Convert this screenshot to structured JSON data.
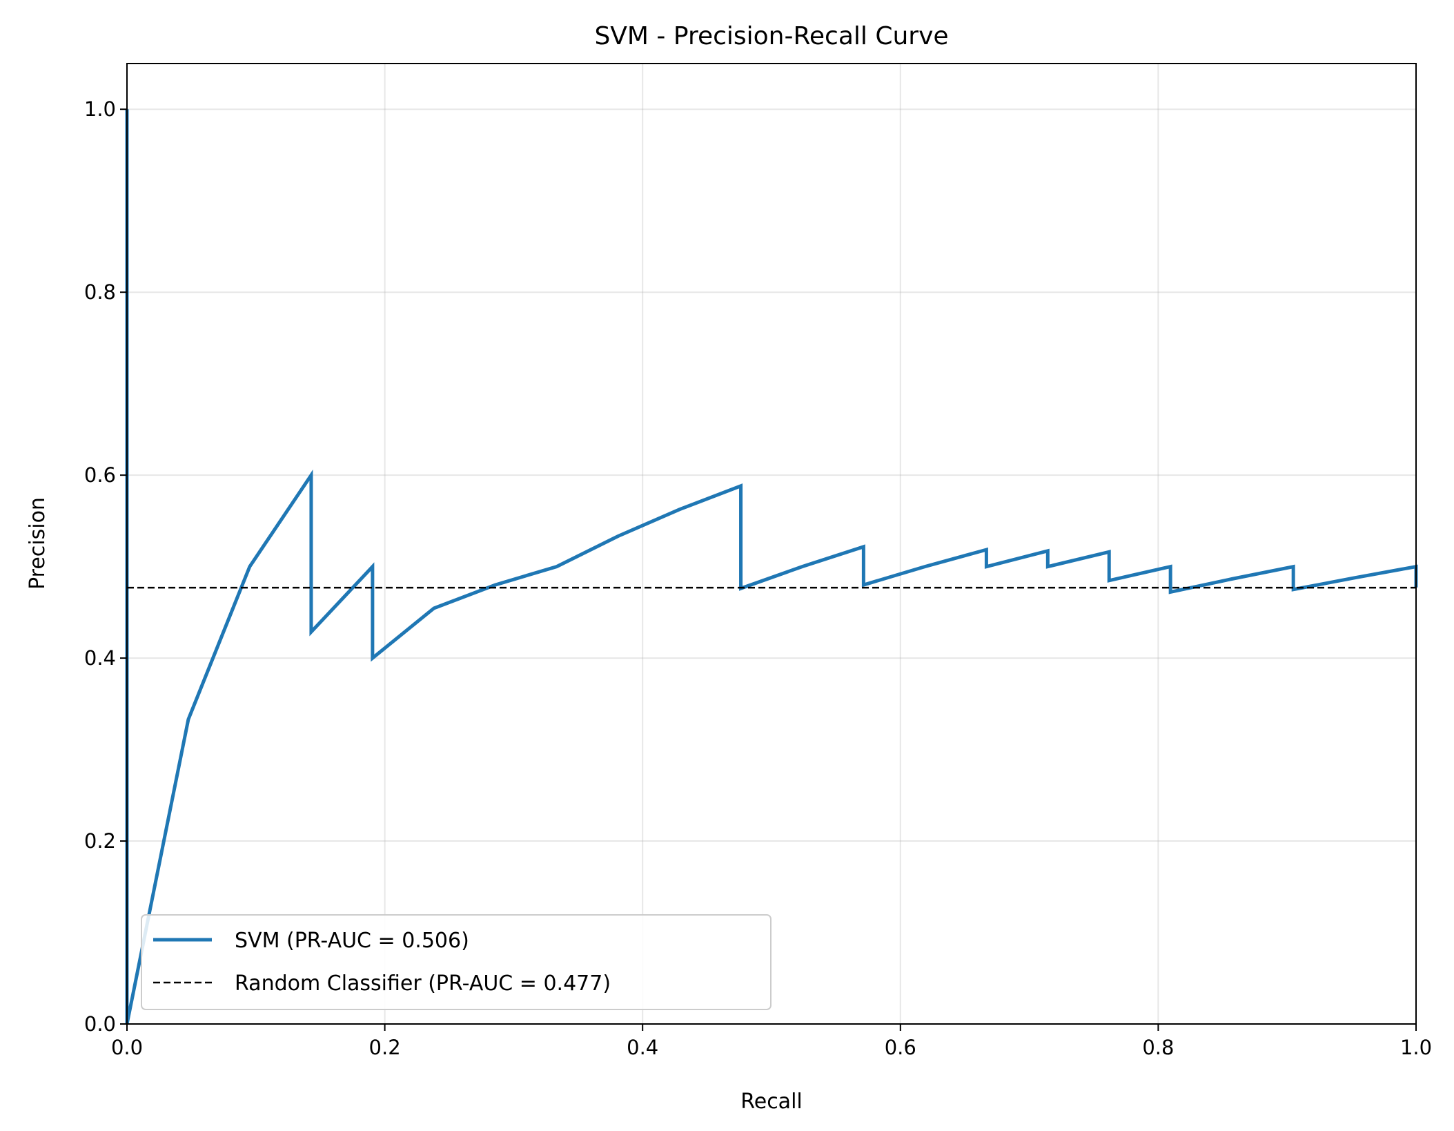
{
  "chart_data": {
    "type": "line",
    "title": "SVM - Precision-Recall Curve",
    "xlabel": "Recall",
    "ylabel": "Precision",
    "xlim": [
      0.0,
      1.0
    ],
    "ylim": [
      0.0,
      1.05
    ],
    "xticks": [
      "0.0",
      "0.2",
      "0.4",
      "0.6",
      "0.8",
      "1.0"
    ],
    "yticks": [
      "0.0",
      "0.2",
      "0.4",
      "0.6",
      "0.8",
      "1.0"
    ],
    "grid": true,
    "legend_position": "lower-left",
    "series": [
      {
        "name": "SVM (PR-AUC = 0.506)",
        "color": "#1f77b4",
        "style": "solid",
        "x": [
          0.0,
          0.0,
          0.0476,
          0.0952,
          0.1429,
          0.1429,
          0.1905,
          0.1905,
          0.2381,
          0.2857,
          0.3333,
          0.381,
          0.4286,
          0.4762,
          0.4762,
          0.5238,
          0.5714,
          0.5714,
          0.619,
          0.6667,
          0.6667,
          0.7143,
          0.7143,
          0.7619,
          0.7619,
          0.8095,
          0.8095,
          0.8571,
          0.9048,
          0.9048,
          0.9524,
          1.0,
          1.0
        ],
        "y": [
          1.0,
          0.0,
          0.333,
          0.5,
          0.6,
          0.4286,
          0.5,
          0.4,
          0.4545,
          0.48,
          0.5,
          0.5333,
          0.5625,
          0.5882,
          0.4762,
          0.5,
          0.5217,
          0.48,
          0.5,
          0.5185,
          0.5,
          0.5172,
          0.5,
          0.5161,
          0.4848,
          0.5,
          0.4722,
          0.4865,
          0.5,
          0.475,
          0.4878,
          0.5,
          0.4773
        ]
      },
      {
        "name": "Random Classifier (PR-AUC = 0.477)",
        "color": "#000000",
        "style": "dashed",
        "x": [
          0.0,
          1.0
        ],
        "y": [
          0.477,
          0.477
        ]
      }
    ]
  }
}
